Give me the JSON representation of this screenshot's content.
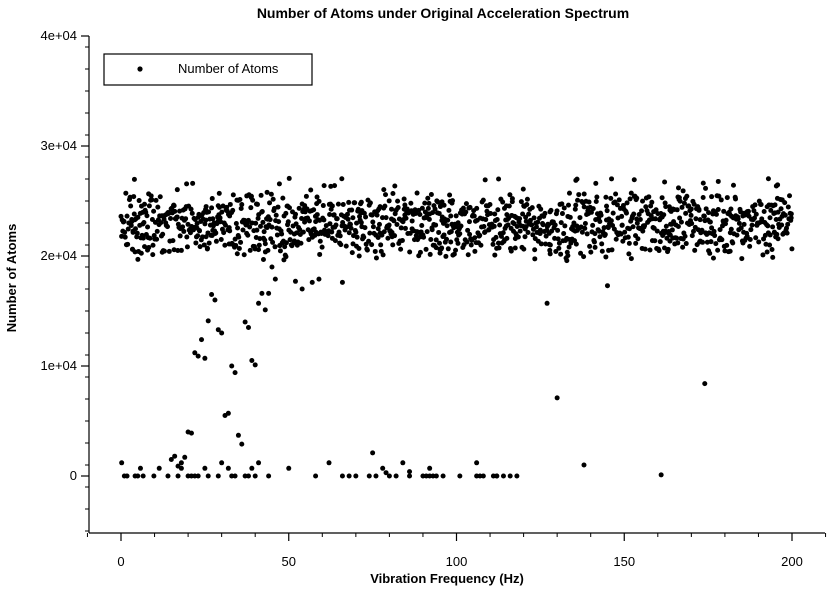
{
  "chart_data": {
    "type": "scatter",
    "title": "Number of Atoms under Original Acceleration Spectrum",
    "xlabel": "Vibration Frequency (Hz)",
    "ylabel": "Number of Atoms",
    "xlim": [
      -10,
      210
    ],
    "ylim": [
      -5000,
      40000
    ],
    "x_ticks": [
      0,
      50,
      100,
      150,
      200
    ],
    "x_tick_labels": [
      "0",
      "50",
      "100",
      "150",
      "200"
    ],
    "y_ticks": [
      0,
      10000,
      20000,
      30000,
      40000
    ],
    "y_tick_labels": [
      "0",
      "1e+04",
      "2e+04",
      "3e+04",
      "4e+04"
    ],
    "grid": false,
    "legend_position": "top-left",
    "series": [
      {
        "name": "Number of Atoms",
        "color": "#000000",
        "points": []
      }
    ]
  }
}
